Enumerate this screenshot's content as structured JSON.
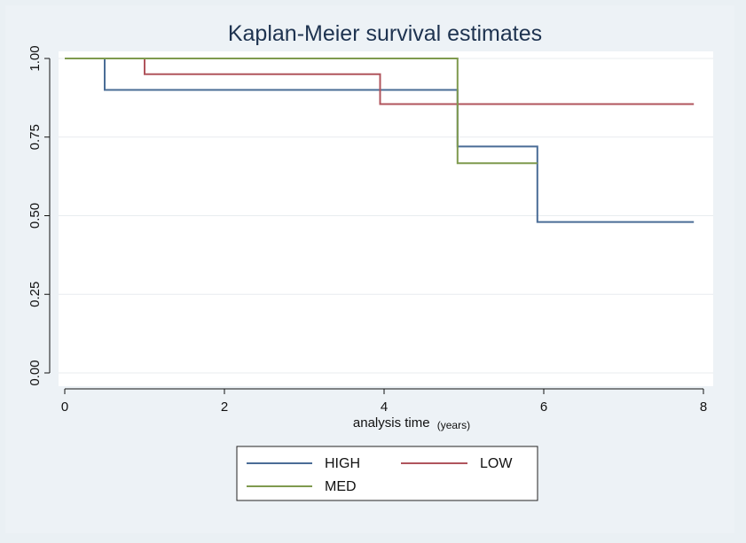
{
  "chart_data": {
    "type": "line",
    "step": true,
    "title": "Kaplan-Meier survival estimates",
    "xlabel": "analysis time",
    "xlabel_unit": "(years)",
    "ylabel": "",
    "xlim": [
      0,
      8
    ],
    "ylim": [
      0,
      1
    ],
    "xticks": [
      0,
      2,
      4,
      6,
      8
    ],
    "xtick_labels": [
      "0",
      "2",
      "4",
      "6",
      "8"
    ],
    "yticks": [
      0,
      0.25,
      0.5,
      0.75,
      1
    ],
    "ytick_labels": [
      "0.00",
      "0.25",
      "0.50",
      "0.75",
      "1.00"
    ],
    "grid": true,
    "legend_position": "bottom",
    "series": [
      {
        "name": "HIGH",
        "color": "#4a6c96",
        "x": [
          0,
          0.5,
          4.92,
          5.92,
          7.88
        ],
        "y": [
          1.0,
          0.9,
          0.72,
          0.48,
          0.48
        ]
      },
      {
        "name": "LOW",
        "color": "#b0545c",
        "x": [
          0,
          1.0,
          3.95,
          7.88
        ],
        "y": [
          1.0,
          0.95,
          0.855,
          0.855
        ]
      },
      {
        "name": "MED",
        "color": "#7f9a4e",
        "x": [
          0,
          4.92,
          5.92
        ],
        "y": [
          1.0,
          0.667,
          0.667
        ]
      }
    ]
  }
}
